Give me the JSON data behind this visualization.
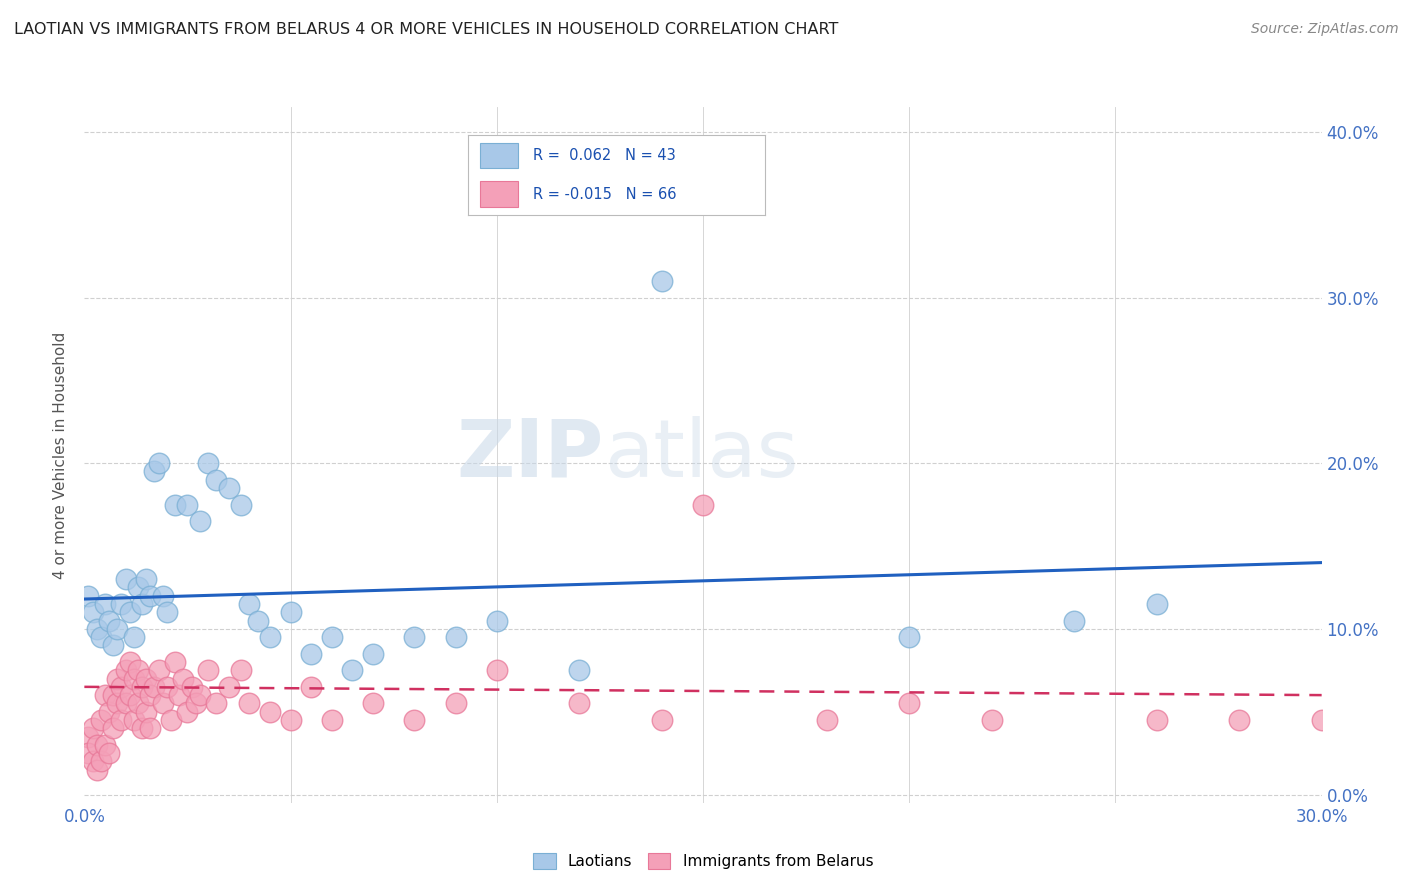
{
  "title": "LAOTIAN VS IMMIGRANTS FROM BELARUS 4 OR MORE VEHICLES IN HOUSEHOLD CORRELATION CHART",
  "source": "Source: ZipAtlas.com",
  "ylabel": "4 or more Vehicles in Household",
  "blue_label": "R =  0.062   N = 43",
  "pink_label": "R = -0.015   N = 66",
  "legend_label_blue": "Laotians",
  "legend_label_pink": "Immigrants from Belarus",
  "blue_color": "#a8c8e8",
  "pink_color": "#f4a0b8",
  "blue_edge_color": "#7aafd4",
  "pink_edge_color": "#e87898",
  "blue_line_color": "#2060c0",
  "pink_line_color": "#d03060",
  "watermark_zip": "ZIP",
  "watermark_atlas": "atlas",
  "blue_scatter_x": [
    0.001,
    0.002,
    0.003,
    0.004,
    0.005,
    0.006,
    0.007,
    0.008,
    0.009,
    0.01,
    0.011,
    0.012,
    0.013,
    0.014,
    0.015,
    0.016,
    0.017,
    0.018,
    0.019,
    0.02,
    0.022,
    0.025,
    0.028,
    0.03,
    0.032,
    0.035,
    0.038,
    0.04,
    0.042,
    0.045,
    0.05,
    0.055,
    0.06,
    0.065,
    0.07,
    0.08,
    0.09,
    0.1,
    0.12,
    0.14,
    0.2,
    0.24,
    0.26
  ],
  "blue_scatter_y": [
    0.12,
    0.11,
    0.1,
    0.095,
    0.115,
    0.105,
    0.09,
    0.1,
    0.115,
    0.13,
    0.11,
    0.095,
    0.125,
    0.115,
    0.13,
    0.12,
    0.195,
    0.2,
    0.12,
    0.11,
    0.175,
    0.175,
    0.165,
    0.2,
    0.19,
    0.185,
    0.175,
    0.115,
    0.105,
    0.095,
    0.11,
    0.085,
    0.095,
    0.075,
    0.085,
    0.095,
    0.095,
    0.105,
    0.075,
    0.31,
    0.095,
    0.105,
    0.115
  ],
  "pink_scatter_x": [
    0.001,
    0.001,
    0.002,
    0.002,
    0.003,
    0.003,
    0.004,
    0.004,
    0.005,
    0.005,
    0.006,
    0.006,
    0.007,
    0.007,
    0.008,
    0.008,
    0.009,
    0.009,
    0.01,
    0.01,
    0.011,
    0.011,
    0.012,
    0.012,
    0.013,
    0.013,
    0.014,
    0.014,
    0.015,
    0.015,
    0.016,
    0.016,
    0.017,
    0.018,
    0.019,
    0.02,
    0.021,
    0.022,
    0.023,
    0.024,
    0.025,
    0.026,
    0.027,
    0.028,
    0.03,
    0.032,
    0.035,
    0.038,
    0.04,
    0.045,
    0.05,
    0.055,
    0.06,
    0.07,
    0.08,
    0.09,
    0.1,
    0.12,
    0.14,
    0.15,
    0.18,
    0.2,
    0.22,
    0.26,
    0.28,
    0.3
  ],
  "pink_scatter_y": [
    0.035,
    0.025,
    0.04,
    0.02,
    0.03,
    0.015,
    0.045,
    0.02,
    0.06,
    0.03,
    0.05,
    0.025,
    0.06,
    0.04,
    0.07,
    0.055,
    0.065,
    0.045,
    0.075,
    0.055,
    0.08,
    0.06,
    0.07,
    0.045,
    0.075,
    0.055,
    0.065,
    0.04,
    0.07,
    0.05,
    0.06,
    0.04,
    0.065,
    0.075,
    0.055,
    0.065,
    0.045,
    0.08,
    0.06,
    0.07,
    0.05,
    0.065,
    0.055,
    0.06,
    0.075,
    0.055,
    0.065,
    0.075,
    0.055,
    0.05,
    0.045,
    0.065,
    0.045,
    0.055,
    0.045,
    0.055,
    0.075,
    0.055,
    0.045,
    0.175,
    0.045,
    0.055,
    0.045,
    0.045,
    0.045,
    0.045
  ],
  "xlim": [
    0.0,
    0.3
  ],
  "ylim": [
    -0.005,
    0.415
  ],
  "y_ticks": [
    0.0,
    0.1,
    0.2,
    0.3,
    0.4
  ],
  "blue_trendline_x": [
    0.0,
    0.3
  ],
  "blue_trendline_y": [
    0.118,
    0.14
  ],
  "pink_trendline_x": [
    0.0,
    0.3
  ],
  "pink_trendline_y": [
    0.065,
    0.06
  ],
  "background_color": "#ffffff",
  "grid_color": "#d0d0d0"
}
